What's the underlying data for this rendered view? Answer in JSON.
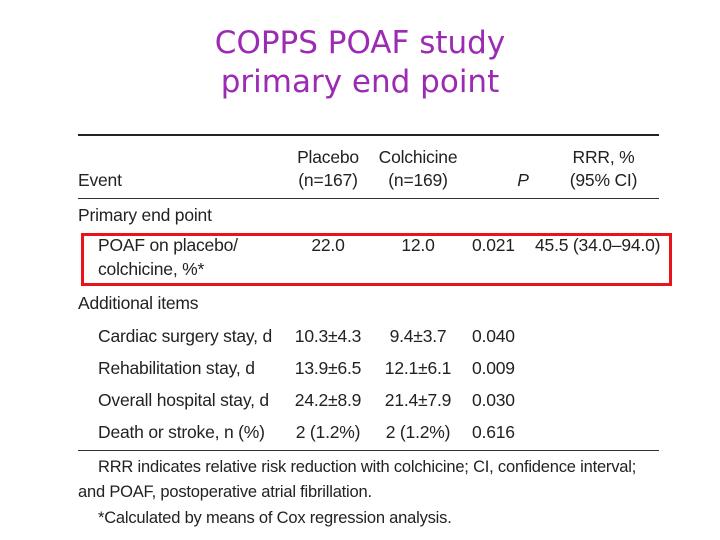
{
  "title": {
    "line1": "COPPS POAF study",
    "line2": "primary end point"
  },
  "table": {
    "headers": {
      "event": "Event",
      "placebo_line1": "Placebo",
      "placebo_line2": "(n=167)",
      "colchicine_line1": "Colchicine",
      "colchicine_line2": "(n=169)",
      "p": "P",
      "rrr_line1": "RRR, %",
      "rrr_line2": "(95% CI)"
    },
    "section_primary": "Primary end point",
    "primary_row": {
      "event_line1": "POAF on placebo/",
      "event_line2": "colchicine, %*",
      "placebo": "22.0",
      "colchicine": "12.0",
      "p": "0.021",
      "rrr": "45.5 (34.0–94.0)"
    },
    "section_additional": "Additional items",
    "rows": [
      {
        "event": "Cardiac surgery stay, d",
        "placebo": "10.3±4.3",
        "colchicine": "9.4±3.7",
        "p": "0.040"
      },
      {
        "event": "Rehabilitation stay, d",
        "placebo": "13.9±6.5",
        "colchicine": "12.1±6.1",
        "p": "0.009"
      },
      {
        "event": "Overall hospital stay, d",
        "placebo": "24.2±8.9",
        "colchicine": "21.4±7.9",
        "p": "0.030"
      },
      {
        "event": "Death or stroke, n (%)",
        "placebo": "2 (1.2%)",
        "colchicine": "2 (1.2%)",
        "p": "0.616"
      }
    ]
  },
  "footnotes": {
    "line1": "RRR indicates relative risk reduction with colchicine; CI, confidence interval;",
    "line2": "and POAF, postoperative atrial fibrillation.",
    "line3": "*Calculated by means of Cox regression analysis."
  },
  "colors": {
    "title": "#9b2bb3",
    "highlight": "#e8141a",
    "text": "#222222"
  }
}
